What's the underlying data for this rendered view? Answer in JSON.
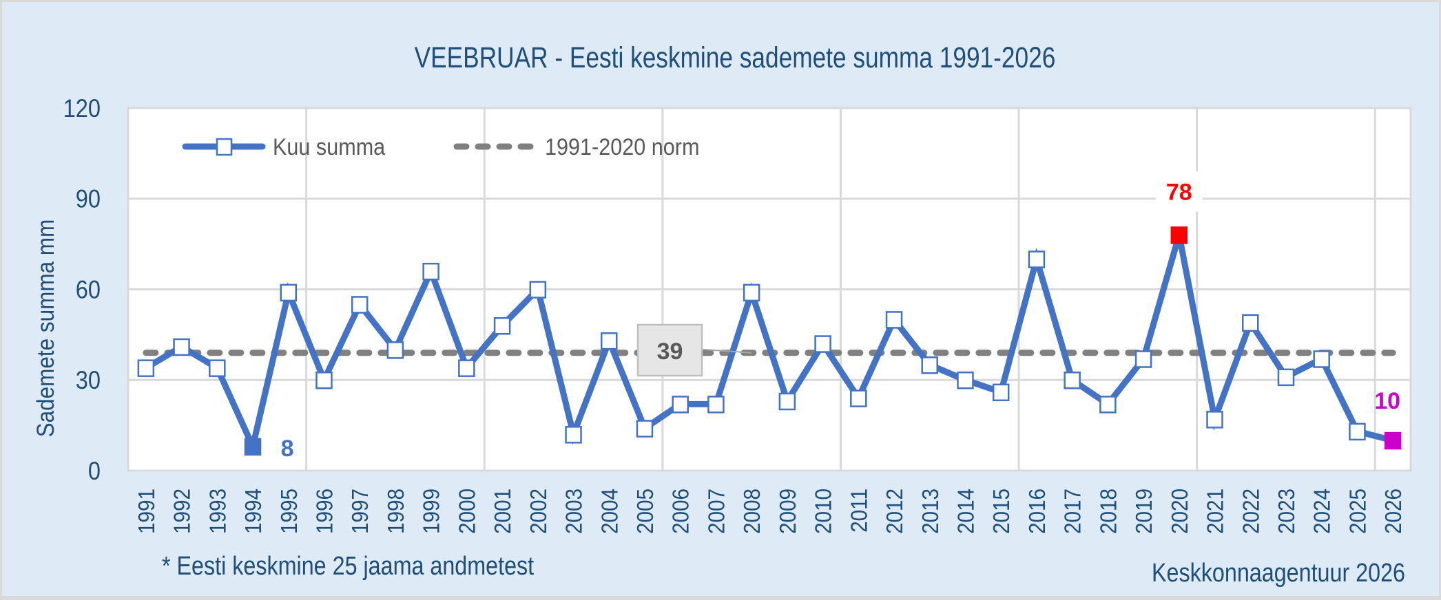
{
  "chart_data": {
    "type": "line",
    "title": "VEEBRUAR - Eesti keskmine sademete summa 1991-2026",
    "xlabel": "",
    "ylabel": "Sademete summa mm",
    "ylim": [
      0,
      120
    ],
    "yticks": [
      0,
      30,
      60,
      90,
      120
    ],
    "grid": true,
    "legend_position": "top-left inside plot",
    "categories": [
      "1991",
      "1992",
      "1993",
      "1994",
      "1995",
      "1996",
      "1997",
      "1998",
      "1999",
      "2000",
      "2001",
      "2002",
      "2003",
      "2004",
      "2005",
      "2006",
      "2007",
      "2008",
      "2009",
      "2010",
      "2011",
      "2012",
      "2013",
      "2014",
      "2015",
      "2016",
      "2017",
      "2018",
      "2019",
      "2020",
      "2021",
      "2022",
      "2023",
      "2024",
      "2025",
      "2026"
    ],
    "series": [
      {
        "name": "Kuu summa",
        "style": "solid line with square markers",
        "color": "#4472c4",
        "values": [
          34,
          41,
          34,
          8,
          59,
          30,
          55,
          40,
          66,
          34,
          48,
          60,
          12,
          43,
          14,
          22,
          22,
          59,
          23,
          42,
          24,
          50,
          35,
          30,
          26,
          70,
          30,
          22,
          37,
          78,
          17,
          49,
          31,
          37,
          13,
          10
        ]
      },
      {
        "name": "1991-2020 norm",
        "style": "dashed line",
        "color": "#808080",
        "values": [
          39,
          39,
          39,
          39,
          39,
          39,
          39,
          39,
          39,
          39,
          39,
          39,
          39,
          39,
          39,
          39,
          39,
          39,
          39,
          39,
          39,
          39,
          39,
          39,
          39,
          39,
          39,
          39,
          39,
          39,
          39,
          39,
          39,
          39,
          39,
          39
        ]
      }
    ],
    "annotations": [
      {
        "label": "8",
        "year": "1994",
        "value": 8,
        "color": "#4472c4",
        "note": "minimum"
      },
      {
        "label": "78",
        "year": "2020",
        "value": 78,
        "color": "#ff0000",
        "note": "maximum"
      },
      {
        "label": "10",
        "year": "2026",
        "value": 10,
        "color": "#cc00cc",
        "note": "current year"
      },
      {
        "label": "39",
        "value": 39,
        "color": "#595959",
        "note": "norm value label"
      }
    ],
    "footnote_left": "* Eesti keskmine 25 jaama andmetest",
    "footnote_right": "Keskkonnaagentuur 2026"
  },
  "colors": {
    "background": "#deeaf6",
    "frame_border": "#d9d9d9",
    "plot_background": "#ffffff",
    "gridline": "#d9d9d9",
    "text": "#1f4e79",
    "series_line": "#4472c4",
    "norm_line": "#808080",
    "max_marker": "#ff0000",
    "last_marker": "#cc00cc",
    "norm_label_fill": "#e6e6e6",
    "norm_label_border": "#bfbfbf"
  }
}
